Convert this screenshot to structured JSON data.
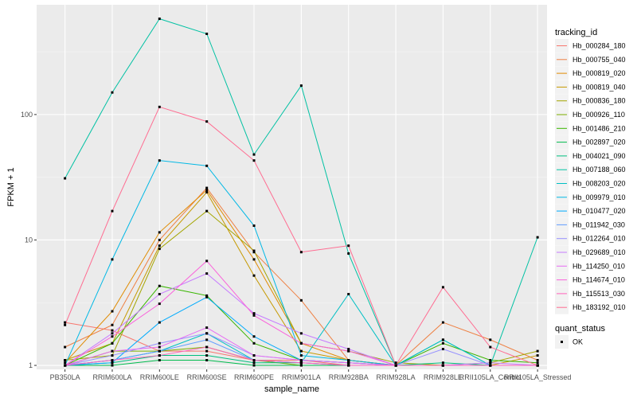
{
  "chart_data": {
    "type": "line",
    "xlabel": "sample_name",
    "ylabel": "FPKM + 1",
    "yscale": "log10",
    "ylim": [
      0.93,
      750
    ],
    "yticks": [
      1,
      10,
      100
    ],
    "ytick_labels": [
      "1",
      "10",
      "100"
    ],
    "grid": true,
    "legend_position": "right",
    "categories": [
      "PB350LA",
      "RRIM600LA",
      "RRIM600LE",
      "RRIM600SE",
      "RRIM600PE",
      "RRIM901LA",
      "RRIM928BA",
      "RRIM928LA",
      "RRIM928LE",
      "RRII105LA_Control",
      "RRII105LA_Stressed"
    ],
    "legend_title": "tracking_id",
    "shape_legend": {
      "title": "quant_status",
      "items": [
        "OK"
      ]
    },
    "series": [
      {
        "name": "Hb_000284_180",
        "color": "#F8766D",
        "values": [
          2.2,
          1.9,
          1.3,
          1.3,
          1.1,
          1.1,
          1.0,
          1.0,
          1.0,
          1.0,
          1.0
        ]
      },
      {
        "name": "Hb_000755_040",
        "color": "#EE8043",
        "values": [
          1.4,
          2.1,
          10.0,
          26.0,
          8.0,
          3.3,
          1.1,
          1.0,
          2.2,
          1.6,
          1.1
        ]
      },
      {
        "name": "Hb_000819_020",
        "color": "#E08B00",
        "values": [
          1.05,
          2.7,
          11.5,
          25.0,
          7.0,
          1.5,
          1.1,
          1.0,
          1.0,
          1.0,
          1.0
        ]
      },
      {
        "name": "Hb_000819_040",
        "color": "#C59900",
        "values": [
          1.1,
          1.5,
          9.0,
          24.0,
          5.2,
          1.3,
          1.1,
          1.0,
          1.0,
          1.0,
          1.2
        ]
      },
      {
        "name": "Hb_000836_180",
        "color": "#A3A500",
        "values": [
          1.1,
          1.2,
          8.5,
          17.0,
          8.2,
          1.5,
          1.3,
          1.05,
          1.0,
          1.05,
          1.3
        ]
      },
      {
        "name": "Hb_000926_110",
        "color": "#7CAE00",
        "values": [
          1.0,
          1.3,
          1.3,
          1.4,
          1.1,
          1.0,
          1.0,
          1.0,
          1.0,
          1.0,
          1.0
        ]
      },
      {
        "name": "Hb_001486_210",
        "color": "#39B600",
        "values": [
          1.0,
          1.5,
          4.3,
          3.6,
          1.5,
          1.1,
          1.05,
          1.0,
          1.5,
          1.1,
          1.05
        ]
      },
      {
        "name": "Hb_002897_020",
        "color": "#00BB4E",
        "values": [
          1.0,
          1.0,
          1.1,
          1.1,
          1.0,
          1.0,
          1.0,
          1.0,
          1.0,
          1.0,
          1.0
        ]
      },
      {
        "name": "Hb_004021_090",
        "color": "#00BF7D",
        "values": [
          1.0,
          1.05,
          1.2,
          1.2,
          1.05,
          1.05,
          1.0,
          1.0,
          1.05,
          1.0,
          1.0
        ]
      },
      {
        "name": "Hb_007188_060",
        "color": "#00C1A3",
        "values": [
          31.0,
          150.0,
          580.0,
          440.0,
          48.0,
          170.0,
          7.8,
          1.0,
          1.6,
          1.0,
          10.5
        ]
      },
      {
        "name": "Hb_008203_020",
        "color": "#00BFC4",
        "values": [
          1.0,
          1.1,
          1.3,
          1.8,
          1.1,
          1.05,
          3.7,
          1.0,
          1.6,
          1.0,
          1.0
        ]
      },
      {
        "name": "Hb_009979_010",
        "color": "#00B8E5",
        "values": [
          1.0,
          7.0,
          43.0,
          39.0,
          13.0,
          1.2,
          1.1,
          1.0,
          1.0,
          1.0,
          1.0
        ]
      },
      {
        "name": "Hb_010477_020",
        "color": "#00ABFD",
        "values": [
          1.0,
          1.05,
          2.2,
          3.5,
          1.7,
          1.1,
          1.05,
          1.0,
          1.0,
          1.0,
          1.0
        ]
      },
      {
        "name": "Hb_011942_030",
        "color": "#619CFF",
        "values": [
          1.0,
          1.1,
          1.3,
          1.6,
          1.1,
          1.05,
          1.0,
          1.0,
          1.0,
          1.0,
          1.0
        ]
      },
      {
        "name": "Hb_012264_010",
        "color": "#9590FF",
        "values": [
          1.0,
          1.2,
          1.5,
          1.8,
          1.2,
          1.1,
          1.05,
          1.0,
          1.35,
          1.0,
          1.0
        ]
      },
      {
        "name": "Hb_029689_010",
        "color": "#C77CFF",
        "values": [
          1.0,
          1.8,
          3.7,
          5.4,
          2.6,
          1.8,
          1.35,
          1.0,
          1.0,
          1.05,
          1.0
        ]
      },
      {
        "name": "Hb_114250_010",
        "color": "#E76BF3",
        "values": [
          1.0,
          1.3,
          1.4,
          2.0,
          1.2,
          1.1,
          1.05,
          1.0,
          1.0,
          1.0,
          1.0
        ]
      },
      {
        "name": "Hb_114674_010",
        "color": "#FA62DB",
        "values": [
          1.0,
          1.7,
          3.1,
          6.8,
          2.5,
          1.5,
          1.3,
          1.0,
          1.0,
          1.0,
          1.0
        ]
      },
      {
        "name": "Hb_115513_030",
        "color": "#FF62BC",
        "values": [
          1.0,
          1.1,
          1.2,
          1.4,
          1.1,
          1.05,
          1.0,
          1.0,
          1.0,
          1.0,
          1.0
        ]
      },
      {
        "name": "Hb_183192_010",
        "color": "#FF6C91",
        "values": [
          2.1,
          17.0,
          115.0,
          88.0,
          43.0,
          8.0,
          9.0,
          1.0,
          4.2,
          1.4,
          1.0
        ]
      }
    ]
  }
}
